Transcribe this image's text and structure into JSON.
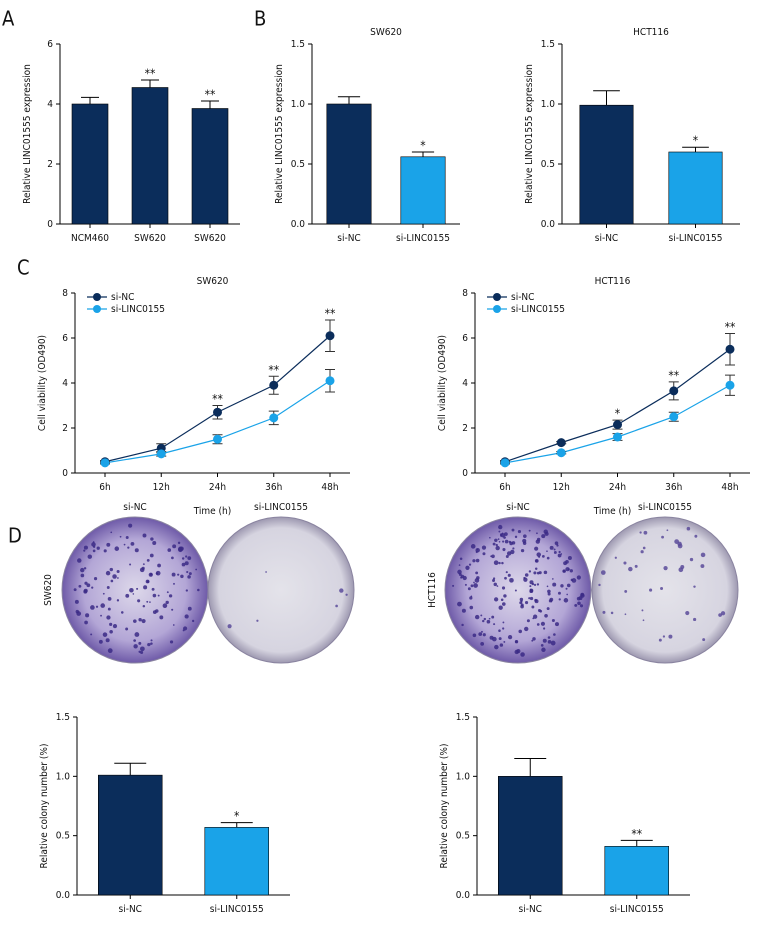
{
  "chart_data": [
    {
      "type": "bar",
      "panel_label": "A",
      "ylabel": "Relative LINC01555 expression",
      "categories": [
        "NCM460",
        "SW620",
        "SW620"
      ],
      "values": [
        4.0,
        4.55,
        3.85
      ],
      "errors": [
        0.22,
        0.25,
        0.25
      ],
      "significance": [
        null,
        "**",
        "**"
      ],
      "colors": [
        "#0b2d5b",
        "#0b2d5b",
        "#0b2d5b"
      ],
      "ylim": [
        0,
        6
      ],
      "yticks": [
        0,
        2,
        4,
        6
      ]
    },
    {
      "type": "bar",
      "panel_label": "B",
      "title": "SW620",
      "ylabel": "Relative LINC01555 expression",
      "categories": [
        "si-NC",
        "si-LINC0155"
      ],
      "values": [
        1.0,
        0.56
      ],
      "errors": [
        0.06,
        0.04
      ],
      "significance": [
        null,
        "*"
      ],
      "colors": [
        "#0b2d5b",
        "#1aa3e8"
      ],
      "ylim": [
        0,
        1.5
      ],
      "yticks": [
        {
          "value": 0,
          "label": "0.0"
        },
        0.5,
        {
          "value": 1,
          "label": "1.0"
        },
        1.5
      ]
    },
    {
      "type": "bar",
      "title": "HCT116",
      "ylabel": "Relative LINC01555 expression",
      "categories": [
        "si-NC",
        "si-LINC0155"
      ],
      "values": [
        0.99,
        0.6
      ],
      "errors": [
        0.12,
        0.04
      ],
      "significance": [
        null,
        "*"
      ],
      "colors": [
        "#0b2d5b",
        "#1aa3e8"
      ],
      "ylim": [
        0,
        1.5
      ],
      "yticks": [
        {
          "value": 0,
          "label": "0.0"
        },
        0.5,
        {
          "value": 1,
          "label": "1.0"
        },
        1.5
      ]
    },
    {
      "type": "line",
      "panel_label": "C",
      "title": "SW620",
      "ylabel": "Cell viability (OD490)",
      "xlabel": "Time (h)",
      "categories": [
        "6h",
        "12h",
        "24h",
        "36h",
        "48h"
      ],
      "series": [
        {
          "name": "si-NC",
          "color": "#0b2d5b",
          "values": [
            0.5,
            1.1,
            2.7,
            3.9,
            6.1
          ],
          "errors": [
            0.05,
            0.2,
            0.3,
            0.4,
            0.7
          ]
        },
        {
          "name": "si-LINC0155",
          "color": "#1aa3e8",
          "values": [
            0.45,
            0.85,
            1.5,
            2.45,
            4.1
          ],
          "errors": [
            0.05,
            0.1,
            0.2,
            0.3,
            0.5
          ]
        }
      ],
      "significance": [
        null,
        null,
        "**",
        "**",
        "**"
      ],
      "ylim": [
        0,
        8
      ],
      "yticks": [
        0,
        2,
        4,
        6,
        8
      ]
    },
    {
      "type": "line",
      "title": "HCT116",
      "ylabel": "Cell viability (OD490)",
      "xlabel": "Time (h)",
      "categories": [
        "6h",
        "12h",
        "24h",
        "36h",
        "48h"
      ],
      "series": [
        {
          "name": "si-NC",
          "color": "#0b2d5b",
          "values": [
            0.5,
            1.35,
            2.15,
            3.65,
            5.5
          ],
          "errors": [
            0.05,
            0.05,
            0.2,
            0.4,
            0.7
          ]
        },
        {
          "name": "si-LINC0155",
          "color": "#1aa3e8",
          "values": [
            0.45,
            0.9,
            1.6,
            2.5,
            3.9
          ],
          "errors": [
            0.05,
            0.05,
            0.15,
            0.2,
            0.45
          ]
        }
      ],
      "significance": [
        null,
        null,
        "*",
        "**",
        "**"
      ],
      "ylim": [
        0,
        8
      ],
      "yticks": [
        0,
        2,
        4,
        6,
        8
      ]
    },
    {
      "type": "bar",
      "ylabel": "Relative colony number (%)",
      "categories": [
        "si-NC",
        "si-LINC0155"
      ],
      "values": [
        1.01,
        0.57
      ],
      "errors": [
        0.1,
        0.04
      ],
      "significance": [
        null,
        "*"
      ],
      "colors": [
        "#0b2d5b",
        "#1aa3e8"
      ],
      "ylim": [
        0,
        1.5
      ],
      "yticks": [
        {
          "value": 0,
          "label": "0.0"
        },
        0.5,
        {
          "value": 1,
          "label": "1.0"
        },
        1.5
      ]
    },
    {
      "type": "bar",
      "ylabel": "Relative colony number (%)",
      "categories": [
        "si-NC",
        "si-LINC0155"
      ],
      "values": [
        1.0,
        0.41
      ],
      "errors": [
        0.15,
        0.05
      ],
      "significance": [
        null,
        "**"
      ],
      "colors": [
        "#0b2d5b",
        "#1aa3e8"
      ],
      "ylim": [
        0,
        1.5
      ],
      "yticks": [
        {
          "value": 0,
          "label": "0.0"
        },
        0.5,
        {
          "value": 1,
          "label": "1.0"
        },
        1.5
      ]
    }
  ],
  "images": {
    "panel_label": "D",
    "columns": [
      "si-NC",
      "si-LINC0155",
      "si-NC",
      "si-LINC0155"
    ],
    "rows": [
      "SW620",
      "HCT116"
    ]
  }
}
